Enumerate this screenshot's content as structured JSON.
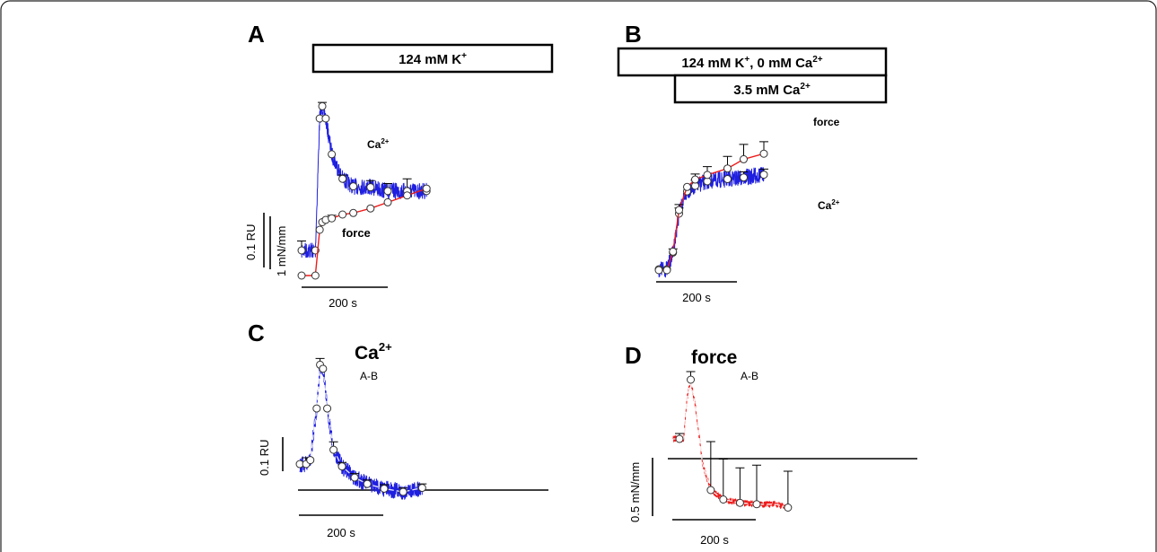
{
  "panels": [
    {
      "letter": "A"
    },
    {
      "letter": "B"
    },
    {
      "letter": "C"
    },
    {
      "letter": "D"
    }
  ],
  "bars": {
    "a": "124 mM K+",
    "b1": "124 mM K+, 0 mM Ca2+",
    "b2": "3.5 mM Ca2+"
  },
  "labels": {
    "ca": "Ca2+",
    "force": "force",
    "ab": "A-B",
    "time_scale": "200 s",
    "scale_ru": "0.1 RU",
    "scale_mn": "1 mN/mm",
    "scale_mn_d": "0.5 mN/mm"
  },
  "colors": {
    "ca_trace": "#1f1fe0",
    "force_trace": "#ee1b1b",
    "marker_fill": "#ffffff",
    "ink": "#000000"
  },
  "chart_data": [
    {
      "panel": "A",
      "type": "line",
      "xlabel": "",
      "ylabel": "",
      "time_scale_s": 200,
      "series": [
        {
          "name": "Ca2+",
          "t": [
            0,
            32,
            42,
            48,
            56,
            70,
            95,
            120,
            160,
            200,
            245,
            290
          ],
          "y": [
            0.02,
            0.02,
            0.16,
            0.173,
            0.16,
            0.122,
            0.096,
            0.088,
            0.087,
            0.083,
            0.083,
            0.083
          ],
          "sem": [
            0.01,
            0,
            0,
            0.004,
            0,
            0,
            0.004,
            0,
            0.007,
            0.008,
            0.013,
            0
          ]
        },
        {
          "name": "force",
          "t": [
            0,
            32,
            42,
            48,
            56,
            70,
            95,
            120,
            160,
            200,
            245,
            290
          ],
          "y": [
            0,
            0,
            0.6,
            0.7,
            0.73,
            0.75,
            0.8,
            0.82,
            0.88,
            0.96,
            1.05,
            1.14
          ],
          "sem": [
            0,
            0,
            0,
            0,
            0,
            0.04,
            0,
            0,
            0,
            0,
            0,
            0
          ]
        }
      ]
    },
    {
      "panel": "B",
      "type": "line",
      "xlabel": "",
      "ylabel": "",
      "time_scale_s": 200,
      "series": [
        {
          "name": "Ca2+",
          "t": [
            0,
            20,
            35,
            50,
            70,
            90,
            120,
            170,
            210,
            260
          ],
          "y": [
            0.0,
            0.0,
            0.03,
            0.1,
            0.14,
            0.15,
            0.158,
            0.162,
            0.165,
            0.17
          ],
          "sem": [
            0,
            0,
            0,
            0.01,
            0,
            0.01,
            0.01,
            0,
            0.01,
            0.01
          ]
        },
        {
          "name": "force",
          "t": [
            0,
            20,
            35,
            50,
            70,
            90,
            120,
            170,
            210,
            260
          ],
          "y": [
            0.0,
            0.0,
            0.2,
            0.65,
            0.9,
            0.98,
            1.03,
            1.1,
            1.2,
            1.26
          ],
          "sem": [
            0,
            0,
            0.03,
            0.06,
            0,
            0.06,
            0.09,
            0.13,
            0.16,
            0.13
          ]
        }
      ]
    },
    {
      "panel": "C",
      "type": "line",
      "title": "Ca2+",
      "subtitle": "A-B",
      "xlabel": "",
      "ylabel": "",
      "time_scale_s": 200,
      "series": [
        {
          "name": "Ca2+",
          "t": [
            0,
            15,
            25,
            40,
            48,
            55,
            65,
            80,
            100,
            130,
            160,
            200,
            245,
            290
          ],
          "y": [
            0.035,
            0.035,
            0.04,
            0.105,
            0.16,
            0.155,
            0.105,
            0.053,
            0.032,
            0.018,
            0.01,
            0.004,
            0.0,
            0.005
          ],
          "sem": [
            0,
            0.008,
            0,
            0,
            0.008,
            0,
            0,
            0.01,
            0.005,
            0.005,
            0.005,
            0.005,
            0.005,
            0.005
          ]
        }
      ]
    },
    {
      "panel": "D",
      "type": "line",
      "title": "force",
      "subtitle": "A-B",
      "xlabel": "",
      "ylabel": "",
      "time_scale_s": 200,
      "series": [
        {
          "name": "force",
          "t": [
            0,
            15,
            25,
            33,
            42,
            55,
            70,
            90,
            120,
            160,
            200,
            245,
            275
          ],
          "y": [
            0.52,
            0.52,
            0.52,
            0.82,
            0.96,
            0.72,
            0.34,
            0.14,
            0.07,
            0.045,
            0.035,
            0.035,
            0.01
          ],
          "sem": [
            0,
            0.04,
            0,
            0,
            0.06,
            0,
            0,
            0.36,
            0.3,
            0.26,
            0.29,
            0.29,
            0.27
          ],
          "markers_t": [
            15,
            42,
            90,
            120,
            160,
            200,
            275
          ],
          "markers_y": [
            0.52,
            0.96,
            0.14,
            0.07,
            0.045,
            0.035,
            0.01
          ]
        }
      ]
    }
  ]
}
